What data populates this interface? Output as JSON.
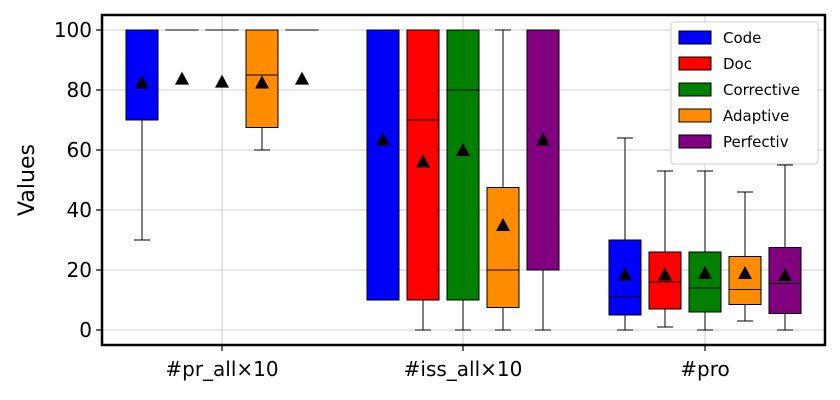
{
  "chart_data": {
    "type": "box",
    "ylabel": "Values",
    "ylim": [
      -5,
      105
    ],
    "yticks": [
      0,
      20,
      40,
      60,
      80,
      100
    ],
    "grid": true,
    "legend_position": "top-right",
    "categories": [
      "#pr_all×10",
      "#iss_all×10",
      "#pro"
    ],
    "series": [
      {
        "name": "Code",
        "color": "#0000ff",
        "boxes": [
          {
            "whisker_low": 30,
            "q1": 70,
            "median": 100,
            "q3": 100,
            "whisker_high": 100,
            "mean": 82.5
          },
          {
            "whisker_low": 10,
            "q1": 10,
            "median": 100,
            "q3": 100,
            "whisker_high": 100,
            "mean": 63.5
          },
          {
            "whisker_low": 0,
            "q1": 5,
            "median": 11,
            "q3": 30,
            "whisker_high": 64,
            "mean": 18.5
          }
        ]
      },
      {
        "name": "Doc",
        "color": "#ff0000",
        "boxes": [
          {
            "whisker_low": 100,
            "q1": 100,
            "median": 100,
            "q3": 100,
            "whisker_high": 100,
            "mean": 83.8
          },
          {
            "whisker_low": 0,
            "q1": 10,
            "median": 70,
            "q3": 100,
            "whisker_high": 100,
            "mean": 56.2
          },
          {
            "whisker_low": 1,
            "q1": 7,
            "median": 16,
            "q3": 26,
            "whisker_high": 53,
            "mean": 18.5
          }
        ]
      },
      {
        "name": "Corrective",
        "color": "#008000",
        "boxes": [
          {
            "whisker_low": 100,
            "q1": 100,
            "median": 100,
            "q3": 100,
            "whisker_high": 100,
            "mean": 82.8
          },
          {
            "whisker_low": 0,
            "q1": 10,
            "median": 80,
            "q3": 100,
            "whisker_high": 100,
            "mean": 60
          },
          {
            "whisker_low": 0,
            "q1": 6,
            "median": 14,
            "q3": 26,
            "whisker_high": 53,
            "mean": 19
          }
        ]
      },
      {
        "name": "Adaptive",
        "color": "#ff8c00",
        "boxes": [
          {
            "whisker_low": 60,
            "q1": 67.5,
            "median": 85,
            "q3": 100,
            "whisker_high": 100,
            "mean": 82.5
          },
          {
            "whisker_low": 0,
            "q1": 7.5,
            "median": 20,
            "q3": 47.5,
            "whisker_high": 100,
            "mean": 35
          },
          {
            "whisker_low": 3,
            "q1": 8.5,
            "median": 13.5,
            "q3": 24.5,
            "whisker_high": 46,
            "mean": 19
          }
        ]
      },
      {
        "name": "Perfectiv",
        "color": "#800080",
        "boxes": [
          {
            "whisker_low": 100,
            "q1": 100,
            "median": 100,
            "q3": 100,
            "whisker_high": 100,
            "mean": 83.8
          },
          {
            "whisker_low": 0,
            "q1": 20,
            "median": 100,
            "q3": 100,
            "whisker_high": 100,
            "mean": 63.5
          },
          {
            "whisker_low": 0,
            "q1": 5.5,
            "median": 15.5,
            "q3": 27.5,
            "whisker_high": 55,
            "mean": 18.3
          }
        ]
      }
    ]
  }
}
